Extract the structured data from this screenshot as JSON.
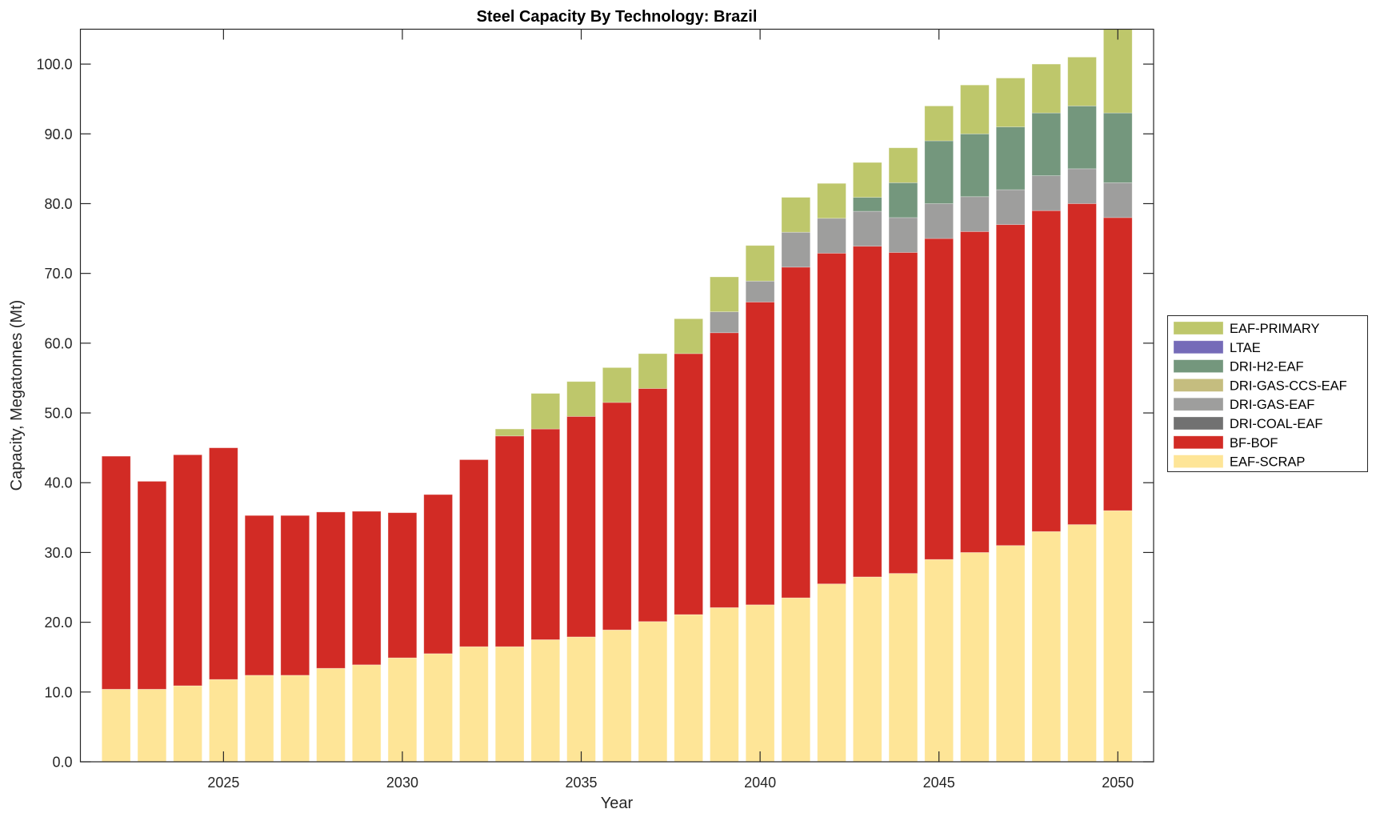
{
  "chart_data": {
    "type": "bar",
    "stacked": true,
    "title": "Steel Capacity By Technology: Brazil",
    "xlabel": "Year",
    "ylabel": "Capacity, Megatonnes (Mt)",
    "xlim": [
      2021,
      2051
    ],
    "ylim": [
      0,
      105
    ],
    "grid": false,
    "legend_position": "outside-right",
    "x_ticks": [
      2025,
      2030,
      2035,
      2040,
      2045,
      2050
    ],
    "y_ticks": [
      0,
      10,
      20,
      30,
      40,
      50,
      60,
      70,
      80,
      90,
      100
    ],
    "y_tick_labels": [
      "0.0",
      "10.0",
      "20.0",
      "30.0",
      "40.0",
      "50.0",
      "60.0",
      "70.0",
      "80.0",
      "90.0",
      "100.0"
    ],
    "categories": [
      2022,
      2023,
      2024,
      2025,
      2026,
      2027,
      2028,
      2029,
      2030,
      2031,
      2032,
      2033,
      2034,
      2035,
      2036,
      2037,
      2038,
      2039,
      2040,
      2041,
      2042,
      2043,
      2044,
      2045,
      2046,
      2047,
      2048,
      2049,
      2050
    ],
    "series": [
      {
        "name": "EAF-SCRAP",
        "color": "#FEE597",
        "values": [
          10.4,
          10.4,
          10.9,
          11.8,
          12.4,
          12.4,
          13.4,
          13.9,
          14.9,
          15.5,
          16.5,
          16.5,
          17.5,
          17.9,
          18.9,
          20.1,
          21.1,
          22.1,
          22.5,
          23.5,
          25.5,
          26.5,
          27.0,
          29.0,
          30.0,
          31.0,
          33.0,
          34.0,
          36.0
        ]
      },
      {
        "name": "BF-BOF",
        "color": "#D22B25",
        "values": [
          33.4,
          29.8,
          33.1,
          33.2,
          22.9,
          22.9,
          22.4,
          22.0,
          20.8,
          22.8,
          26.8,
          30.2,
          30.2,
          31.6,
          32.6,
          33.4,
          37.4,
          39.4,
          43.4,
          47.4,
          47.4,
          47.4,
          46.0,
          46.0,
          46.0,
          46.0,
          46.0,
          46.0,
          42.0
        ]
      },
      {
        "name": "DRI-COAL-EAF",
        "color": "#717171",
        "values": [
          0,
          0,
          0,
          0,
          0,
          0,
          0,
          0,
          0,
          0,
          0,
          0,
          0,
          0,
          0,
          0,
          0,
          0,
          0,
          0,
          0,
          0,
          0,
          0,
          0,
          0,
          0,
          0,
          0
        ]
      },
      {
        "name": "DRI-GAS-EAF",
        "color": "#9E9E9D",
        "values": [
          0,
          0,
          0,
          0,
          0,
          0,
          0,
          0,
          0,
          0,
          0,
          0,
          0,
          0,
          0,
          0,
          0,
          3.0,
          3.0,
          5.0,
          5.0,
          5.0,
          5.0,
          5.0,
          5.0,
          5.0,
          5.0,
          5.0,
          5.0
        ]
      },
      {
        "name": "DRI-GAS-CCS-EAF",
        "color": "#C5BD7F",
        "values": [
          0,
          0,
          0,
          0,
          0,
          0,
          0,
          0,
          0,
          0,
          0,
          0,
          0,
          0,
          0,
          0,
          0,
          0,
          0,
          0,
          0,
          0,
          0,
          0,
          0,
          0,
          0,
          0,
          0
        ]
      },
      {
        "name": "DRI-H2-EAF",
        "color": "#74977D",
        "values": [
          0,
          0,
          0,
          0,
          0,
          0,
          0,
          0,
          0,
          0,
          0,
          0,
          0,
          0,
          0,
          0,
          0,
          0,
          0,
          0,
          0,
          2.0,
          5.0,
          9.0,
          9.0,
          9.0,
          9.0,
          9.0,
          10.0
        ]
      },
      {
        "name": "LTAE",
        "color": "#756BB8",
        "values": [
          0,
          0,
          0,
          0,
          0,
          0,
          0,
          0,
          0,
          0,
          0,
          0,
          0,
          0,
          0,
          0,
          0,
          0,
          0,
          0,
          0,
          0,
          0,
          0,
          0,
          0,
          0,
          0,
          0
        ]
      },
      {
        "name": "EAF-PRIMARY",
        "color": "#BEC76B",
        "values": [
          0,
          0,
          0,
          0,
          0,
          0,
          0,
          0,
          0,
          0,
          0,
          1.0,
          5.1,
          5.0,
          5.0,
          5.0,
          5.0,
          5.0,
          5.1,
          5.0,
          5.0,
          5.0,
          5.0,
          5.0,
          7.0,
          7.0,
          7.0,
          7.0,
          13.0
        ]
      }
    ],
    "legend": [
      "EAF-PRIMARY",
      "LTAE",
      "DRI-H2-EAF",
      "DRI-GAS-CCS-EAF",
      "DRI-GAS-EAF",
      "DRI-COAL-EAF",
      "BF-BOF",
      "EAF-SCRAP"
    ]
  }
}
